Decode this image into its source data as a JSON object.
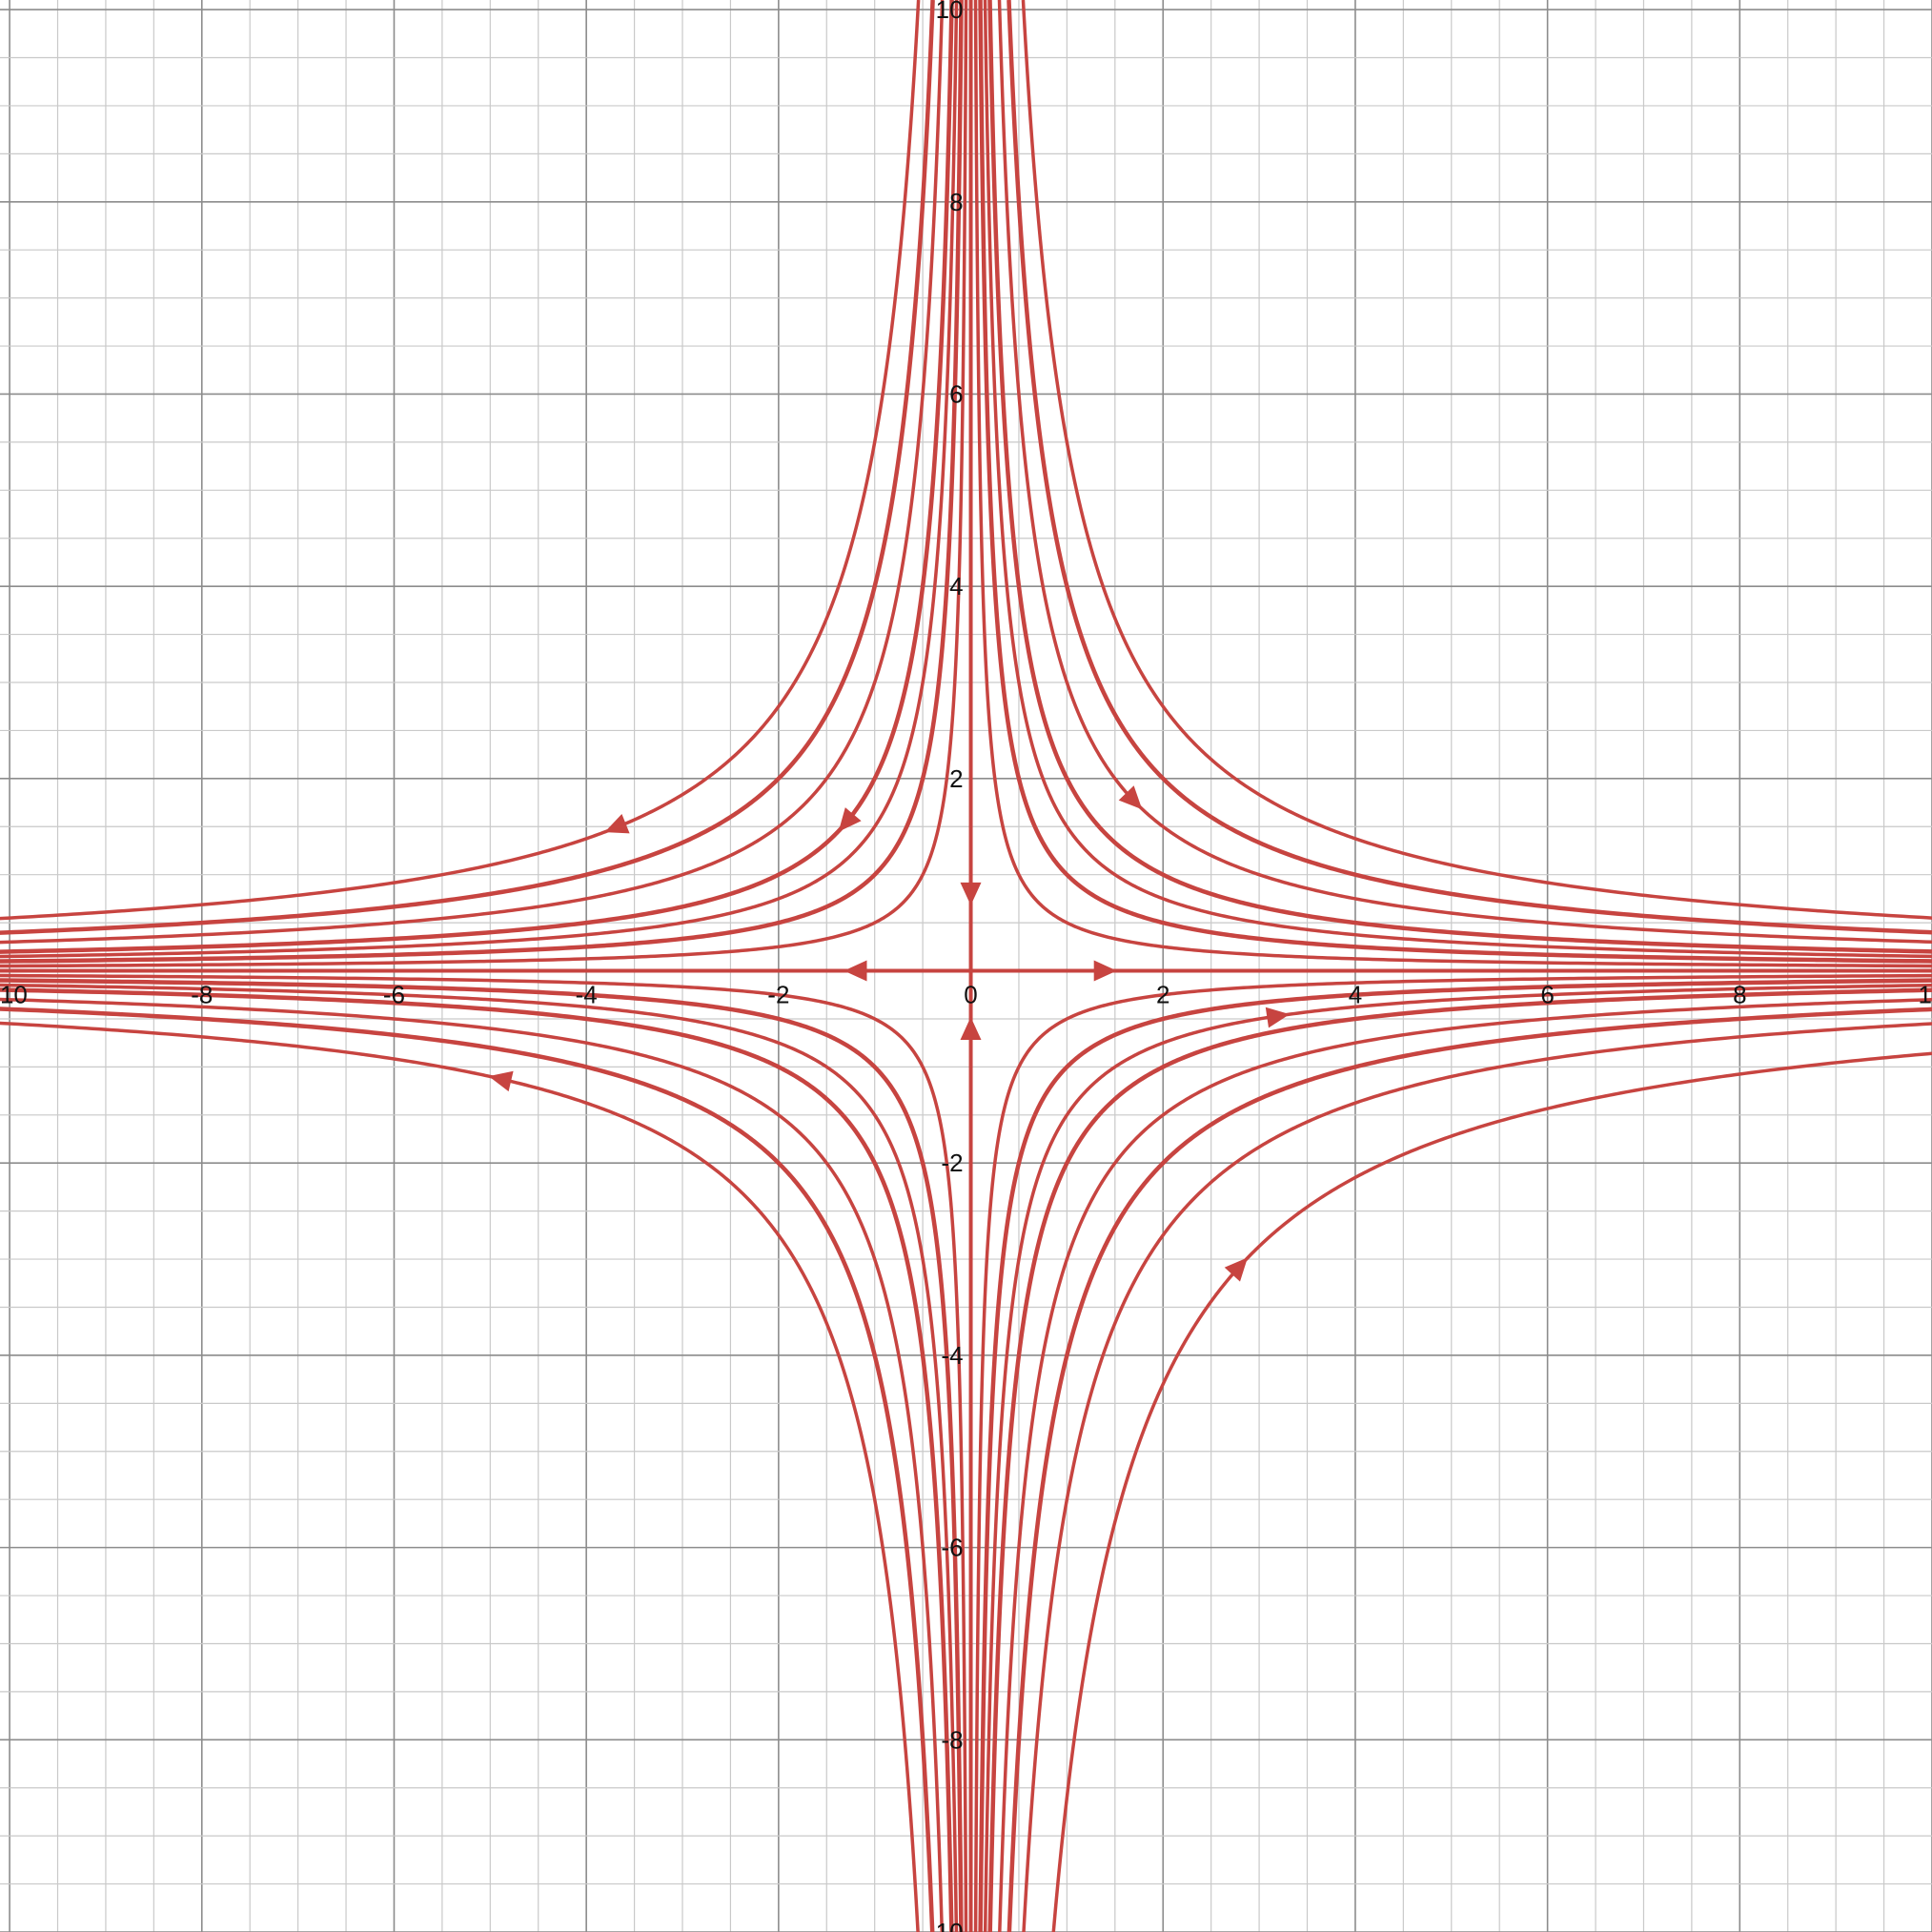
{
  "chart_data": {
    "type": "line",
    "title": "",
    "xlabel": "",
    "ylabel": "",
    "xlim": [
      -10.1,
      10
    ],
    "ylim": [
      -10,
      10.1
    ],
    "grid": true,
    "grid_minor_step": 0.5,
    "grid_major_step": 2,
    "x_ticks": [
      {
        "value": -10,
        "label": "-10"
      },
      {
        "value": -8,
        "label": "-8"
      },
      {
        "value": -6,
        "label": "-6"
      },
      {
        "value": -4,
        "label": "-4"
      },
      {
        "value": -2,
        "label": "-2"
      },
      {
        "value": 0,
        "label": "0"
      },
      {
        "value": 2,
        "label": "2"
      },
      {
        "value": 4,
        "label": "4"
      },
      {
        "value": 6,
        "label": "6"
      },
      {
        "value": 8,
        "label": "8"
      },
      {
        "value": 10,
        "label": "10"
      }
    ],
    "y_ticks": [
      {
        "value": 10,
        "label": "10"
      },
      {
        "value": 8,
        "label": "8"
      },
      {
        "value": 6,
        "label": "6"
      },
      {
        "value": 4,
        "label": "4"
      },
      {
        "value": 2,
        "label": "2"
      },
      {
        "value": -2,
        "label": "-2"
      },
      {
        "value": -4,
        "label": "-4"
      },
      {
        "value": -6,
        "label": "-6"
      },
      {
        "value": -8,
        "label": "-8"
      },
      {
        "value": -10,
        "label": "-10"
      }
    ],
    "hyperbola_constants": [
      0.5,
      1.0,
      1.5,
      2.0,
      3.0,
      4.0,
      5.5
    ],
    "hyperbola_widths": [
      3.5,
      4.5,
      3.5,
      4.5,
      3.5,
      4.5,
      3.5
    ],
    "axis_trajectories": [
      {
        "name": "positive-y-axis",
        "direction": "toward-origin",
        "arrow_at": [
          0,
          0.8
        ]
      },
      {
        "name": "negative-y-axis",
        "direction": "toward-origin",
        "arrow_at": [
          0,
          -0.6
        ]
      },
      {
        "name": "positive-x-axis",
        "direction": "away-from-origin",
        "arrow_at": [
          1.4,
          0
        ]
      },
      {
        "name": "negative-x-axis",
        "direction": "away-from-origin",
        "arrow_at": [
          -1.2,
          0
        ]
      }
    ],
    "arrows": [
      {
        "x": 1.7,
        "c": 3.0,
        "direction": "right"
      },
      {
        "x": -3.7,
        "c": 5.5,
        "direction": "left"
      },
      {
        "x": -1.3,
        "c": 2.0,
        "direction": "left"
      },
      {
        "x": -4.9,
        "c": 5.5,
        "direction": "left"
      },
      {
        "x": 3.2,
        "c": 1.5,
        "direction": "right"
      },
      {
        "x": 2.8,
        "c": 8.6,
        "direction": "right"
      }
    ],
    "extra_curves": [
      {
        "c": 8.6,
        "quadrant": 4,
        "width": 3.5
      }
    ],
    "colors": {
      "curve": "#c74440",
      "grid_minor": "#c9c9c9",
      "grid_major": "#8c8c8c",
      "background": "#ffffff"
    }
  }
}
